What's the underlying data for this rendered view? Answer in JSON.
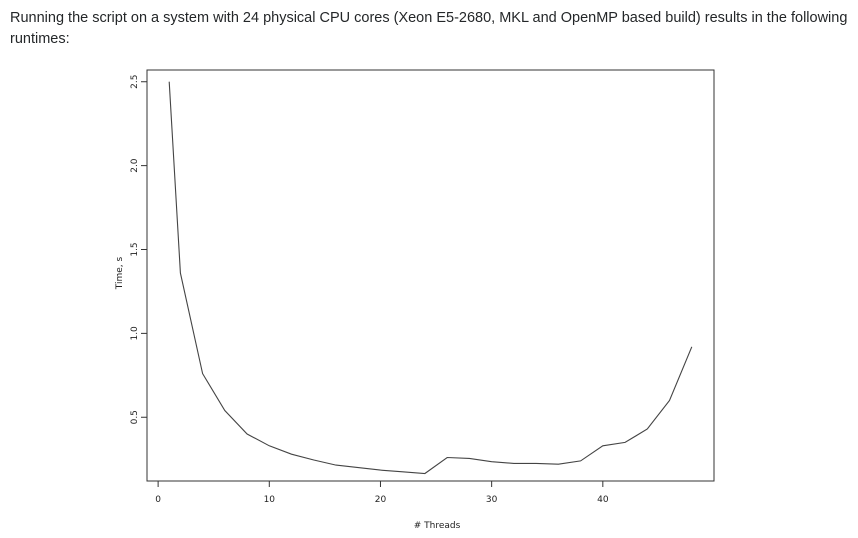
{
  "paragraph": {
    "text": "Running the script on a system with 24 physical CPU cores (Xeon E5-2680, MKL and OpenMP based build) results in the following runtimes:"
  },
  "chart_data": {
    "type": "line",
    "title": "",
    "xlabel": "# Threads",
    "ylabel": "Time, s",
    "xlim": [
      -1,
      50
    ],
    "ylim": [
      0.12,
      2.57
    ],
    "x_ticks": [
      0,
      10,
      20,
      30,
      40
    ],
    "x_tick_labels": [
      "0",
      "10",
      "20",
      "30",
      "40"
    ],
    "y_ticks": [
      0.5,
      1.0,
      1.5,
      2.0,
      2.5
    ],
    "y_tick_labels": [
      "0.5",
      "1.0",
      "1.5",
      "2.0",
      "2.5"
    ],
    "grid": false,
    "series": [
      {
        "x": [
          1,
          2,
          4,
          6,
          8,
          10,
          12,
          14,
          16,
          18,
          20,
          22,
          24,
          26,
          28,
          30,
          32,
          34,
          36,
          38,
          40,
          42,
          44,
          46,
          48
        ],
        "y": [
          2.5,
          1.36,
          0.76,
          0.54,
          0.4,
          0.33,
          0.28,
          0.245,
          0.215,
          0.2,
          0.185,
          0.175,
          0.165,
          0.26,
          0.255,
          0.235,
          0.225,
          0.225,
          0.22,
          0.24,
          0.33,
          0.35,
          0.43,
          0.6,
          0.92
        ]
      }
    ]
  }
}
